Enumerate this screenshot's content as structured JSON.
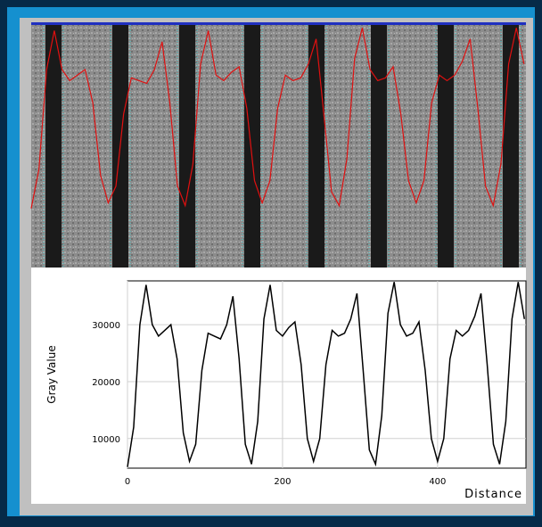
{
  "chart_data": {
    "type": "line",
    "x_label": "Distance",
    "y_label": "Gray Value",
    "x": [
      0,
      8,
      16,
      24,
      32,
      40,
      48,
      56,
      64,
      72,
      80,
      88,
      96,
      104,
      112,
      120,
      128,
      136,
      144,
      152,
      160,
      168,
      176,
      184,
      192,
      200,
      208,
      216,
      224,
      232,
      240,
      248,
      256,
      264,
      272,
      280,
      288,
      296,
      304,
      312,
      320,
      328,
      336,
      344,
      352,
      360,
      368,
      376,
      384,
      392,
      400,
      408,
      416,
      424,
      432,
      440,
      448,
      456,
      464,
      472,
      480,
      488,
      496,
      504,
      512
    ],
    "series": [
      {
        "color": "#000000",
        "values": [
          5000,
          12000,
          30000,
          37000,
          30000,
          28000,
          29000,
          30000,
          24000,
          11000,
          6000,
          9000,
          22000,
          28500,
          28000,
          27500,
          30000,
          35000,
          24000,
          9000,
          5500,
          13000,
          31000,
          37000,
          29000,
          28000,
          29500,
          30500,
          23000,
          10000,
          6000,
          10000,
          23000,
          29000,
          28000,
          28500,
          31000,
          35500,
          22000,
          8000,
          5500,
          14000,
          32000,
          37500,
          30000,
          28000,
          28500,
          30500,
          22000,
          10000,
          6000,
          10000,
          24000,
          29000,
          28000,
          29000,
          31500,
          35500,
          23000,
          9000,
          5500,
          13000,
          31000,
          37500,
          31000
        ]
      }
    ],
    "xlim": [
      0,
      514
    ],
    "ylim": [
      4800,
      37700
    ],
    "xticks": [
      0,
      200,
      400
    ],
    "yticks": [
      10000,
      20000,
      30000
    ],
    "grid": true,
    "overlay_color": "#e01010"
  }
}
